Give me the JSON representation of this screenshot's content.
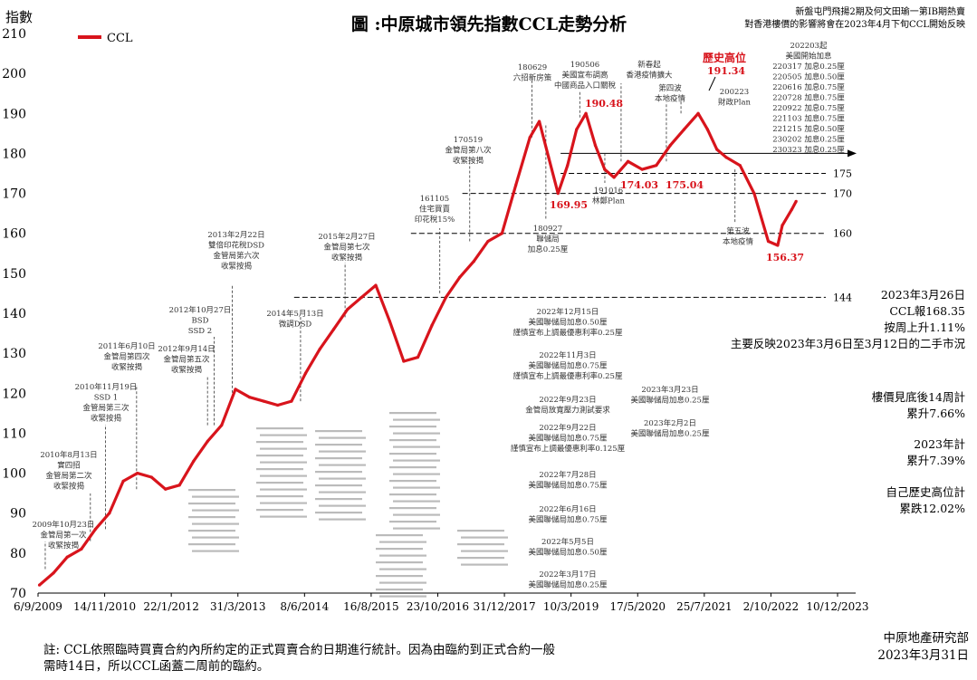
{
  "chart_data": {
    "type": "line",
    "title": "圖 :中原城市領先指數CCL走勢分析",
    "top_note_line1": "新盤屯門飛揚2期及何文田瑜一第IB期熱賣",
    "top_note_line2": "對香港樓價的影響將會在2023年4月下旬CCL開始反映",
    "ylabel": "指數",
    "ylim": [
      70,
      210
    ],
    "yticks": [
      70,
      80,
      90,
      100,
      110,
      120,
      130,
      140,
      150,
      160,
      170,
      180,
      190,
      200,
      210
    ],
    "xticks": [
      "6/9/2009",
      "14/11/2010",
      "22/1/2012",
      "31/3/2013",
      "8/6/2014",
      "16/8/2015",
      "23/10/2016",
      "31/12/2017",
      "10/3/2019",
      "17/5/2020",
      "25/7/2021",
      "2/10/2022",
      "10/12/2023"
    ],
    "legend": "CCL",
    "line_color": "#d8141c",
    "series": [
      {
        "name": "CCL",
        "x": [
          "2009-09",
          "2009-12",
          "2010-03",
          "2010-06",
          "2010-09",
          "2010-12",
          "2011-03",
          "2011-06",
          "2011-09",
          "2011-12",
          "2012-03",
          "2012-06",
          "2012-09",
          "2012-12",
          "2013-03",
          "2013-06",
          "2013-09",
          "2013-12",
          "2014-03",
          "2014-06",
          "2014-09",
          "2014-12",
          "2015-03",
          "2015-06",
          "2015-09",
          "2015-12",
          "2016-03",
          "2016-06",
          "2016-09",
          "2016-12",
          "2017-03",
          "2017-06",
          "2017-09",
          "2017-12",
          "2018-03",
          "2018-06",
          "2018-08",
          "2018-10",
          "2018-12",
          "2019-02",
          "2019-04",
          "2019-06",
          "2019-08",
          "2019-10",
          "2019-12",
          "2020-03",
          "2020-06",
          "2020-09",
          "2020-12",
          "2021-03",
          "2021-06",
          "2021-08",
          "2021-10",
          "2021-12",
          "2022-03",
          "2022-06",
          "2022-09",
          "2022-11",
          "2022-12",
          "2023-02",
          "2023-03"
        ],
        "values": [
          72,
          75,
          79,
          81,
          86,
          90,
          98,
          100,
          99,
          96,
          97,
          103,
          108,
          112,
          121,
          119,
          118,
          117,
          118,
          125,
          131,
          136,
          141,
          144,
          147,
          138,
          128,
          129,
          137,
          144,
          149,
          153,
          158,
          160,
          172,
          184,
          188,
          179,
          170,
          177,
          186,
          190,
          182,
          176,
          174,
          178,
          176,
          177,
          182,
          186,
          190,
          186,
          181,
          179,
          177,
          170,
          158,
          157,
          162,
          166,
          168
        ]
      }
    ],
    "peak_label": "歷史高位",
    "value_labels": [
      "191.34",
      "190.48",
      "169.95",
      "174.03",
      "175.04",
      "156.37"
    ],
    "ref_lines": [
      "175",
      "170",
      "160",
      "144"
    ],
    "annotations": [
      [
        "2009年10月23日",
        "金管局第一次",
        "收緊按揭"
      ],
      [
        "2010年8月13日",
        "實四招",
        "金管局第二次",
        "收緊按揭"
      ],
      [
        "2010年11月19日",
        "SSD 1",
        "金管局第三次",
        "收緊按揭"
      ],
      [
        "2011年6月10日",
        "金管局第四次",
        "收緊按揭"
      ],
      [
        "2012年9月14日",
        "金管局第五次",
        "收緊按揭"
      ],
      [
        "2012年10月27日",
        "BSD",
        "SSD 2"
      ],
      [
        "2013年2月22日",
        "雙倍印花稅DSD",
        "金管局第六次",
        "收緊按揭"
      ],
      [
        "2014年5月13日",
        "微調DSD"
      ],
      [
        "2015年2月27日",
        "金管局第七次",
        "收緊按揭"
      ],
      [
        "161105",
        "住宅買賣",
        "印花稅15%"
      ],
      [
        "170519",
        "金管局第八次",
        "收緊按揭"
      ],
      [
        "180629",
        "六招新房策"
      ],
      [
        "180927",
        "聯儲局",
        "加息0.25厘"
      ],
      [
        "190506",
        "美國宣布調高",
        "中國商品入口關稅"
      ],
      [
        "191016",
        "林鄭Plan"
      ],
      [
        "新春起",
        "香港疫情擴大"
      ],
      [
        "第四波",
        "本地疫情"
      ],
      [
        "200223",
        "財政Plan"
      ],
      [
        "第五波",
        "本地疫情"
      ],
      [
        "202203起",
        "美國開始加息",
        "220317  加息0.25厘",
        "220505  加息0.50厘",
        "220616  加息0.75厘",
        "220728  加息0.75厘",
        "220922  加息0.75厘",
        "221103  加息0.75厘",
        "221215  加息0.50厘",
        "230202  加息0.25厘",
        "230323  加息0.25厘"
      ],
      [
        "2022年12月15日",
        "美國聯儲局加息0.50厘",
        "謹慎宣布上調最優惠利率0.25厘"
      ],
      [
        "2022年11月3日",
        "美國聯儲局加息0.75厘",
        "謹慎宣布上調最優惠利率0.25厘"
      ],
      [
        "2022年9月23日",
        "金管局放寬壓力測試要求"
      ],
      [
        "2022年9月22日",
        "美國聯儲局加息0.75厘",
        "謹慎宣布上調最優惠利率0.125厘"
      ],
      [
        "2022年7月28日",
        "美國聯儲局加息0.75厘"
      ],
      [
        "2022年6月16日",
        "美國聯儲局加息0.75厘"
      ],
      [
        "2022年5月5日",
        "美國聯儲局加息0.50厘"
      ],
      [
        "2022年3月17日",
        "美國聯儲局加息0.25厘"
      ],
      [
        "2023年3月23日",
        "美國聯儲局加息0.25厘"
      ],
      [
        "2023年2月2日",
        "美國聯儲局加息0.25厘"
      ]
    ],
    "side_notes": [
      [
        "2023年3月26日",
        "CCL報168.35",
        "按周上升1.11%",
        "主要反映2023年3月6日至3月12日的二手市況"
      ],
      [
        "樓價見底後14周計",
        "累升7.66%"
      ],
      [
        "2023年計",
        "累升7.39%"
      ],
      [
        "自己歷史高位計",
        "累跌12.02%"
      ]
    ],
    "footnote_line1": "註: CCL依照臨時買賣合約內所約定的正式買賣合約日期進行統計。因為由臨約到正式合約一般",
    "footnote_line2": "需時14日，所以CCL函蓋二周前的臨約。",
    "source_line1": "中原地產研究部",
    "source_line2": "2023年3月31日"
  }
}
